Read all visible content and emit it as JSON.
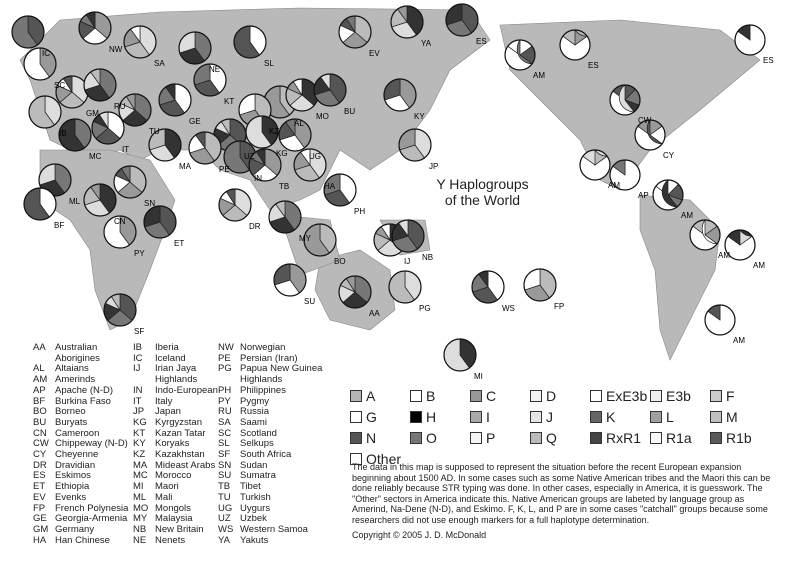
{
  "title": [
    "Y Haplogroups",
    "of the World"
  ],
  "pie_labels": [
    "IC",
    "NW",
    "SA",
    "NE",
    "SL",
    "EV",
    "YA",
    "ES",
    "SC",
    "GM",
    "RU",
    "KT",
    "AL",
    "MO",
    "BU",
    "KY",
    "IB",
    "TU",
    "GE",
    "KZ",
    "KG",
    "UZ",
    "UG",
    "JP",
    "MC",
    "IT",
    "PE",
    "MA",
    "IN",
    "TB",
    "HA",
    "ML",
    "BF",
    "SN",
    "CN",
    "ET",
    "PY",
    "DR",
    "MY",
    "PH",
    "BO",
    "IJ",
    "NB",
    "SU",
    "PG",
    "AA",
    "WS",
    "FP",
    "MI",
    "SF",
    "AM",
    "ES",
    "ES",
    "CW",
    "CY",
    "AM",
    "AP",
    "AM",
    "AM",
    "AM",
    "AM"
  ],
  "abbreviations": [
    [
      [
        "AA",
        "Australian"
      ],
      [
        "",
        "Aborigines"
      ],
      [
        "AL",
        "Altaians"
      ],
      [
        "AM",
        "Amerinds"
      ],
      [
        "AP",
        "Apache (N-D)"
      ],
      [
        "BF",
        "Burkina Faso"
      ],
      [
        "BO",
        "Borneo"
      ],
      [
        "BU",
        "Buryats"
      ],
      [
        "CN",
        "Cameroon"
      ],
      [
        "CW",
        "Chippeway (N-D)"
      ],
      [
        "CY",
        "Cheyenne"
      ],
      [
        "DR",
        "Dravidian"
      ],
      [
        "ES",
        "Eskimos"
      ],
      [
        "ET",
        "Ethiopia"
      ],
      [
        "EV",
        "Evenks"
      ],
      [
        "FP",
        "French Polynesia"
      ],
      [
        "GE",
        "Georgia-Armenia"
      ],
      [
        "GM",
        "Germany"
      ],
      [
        "HA",
        "Han Chinese"
      ]
    ],
    [
      [
        "IB",
        "Iberia"
      ],
      [
        "IC",
        "Iceland"
      ],
      [
        "IJ",
        "Irian Jaya"
      ],
      [
        "",
        "Highlands"
      ],
      [
        "IN",
        "Indo-European"
      ],
      [
        "IT",
        "Italy"
      ],
      [
        "JP",
        "Japan"
      ],
      [
        "KG",
        "Kyrgyzstan"
      ],
      [
        "KT",
        "Kazan Tatar"
      ],
      [
        "KY",
        "Koryaks"
      ],
      [
        "KZ",
        "Kazakhstan"
      ],
      [
        "MA",
        "Mideast Arabs"
      ],
      [
        "MC",
        "Morocco"
      ],
      [
        "MI",
        "Maori"
      ],
      [
        "ML",
        "Mali"
      ],
      [
        "MO",
        "Mongols"
      ],
      [
        "MY",
        "Malaysia"
      ],
      [
        "NB",
        "New Britain"
      ],
      [
        "NE",
        "Nenets"
      ]
    ],
    [
      [
        "NW",
        "Norwegian"
      ],
      [
        "PE",
        "Persian (Iran)"
      ],
      [
        "PG",
        "Papua New Guinea"
      ],
      [
        "",
        "Highlands"
      ],
      [
        "PH",
        "Philippines"
      ],
      [
        "PY",
        "Pygmy"
      ],
      [
        "RU",
        "Russia"
      ],
      [
        "SA",
        "Saami"
      ],
      [
        "SC",
        "Scotland"
      ],
      [
        "SL",
        "Selkups"
      ],
      [
        "SF",
        "South Africa"
      ],
      [
        "SN",
        "Sudan"
      ],
      [
        "SU",
        "Sumatra"
      ],
      [
        "TB",
        "Tibet"
      ],
      [
        "TU",
        "Turkish"
      ],
      [
        "UG",
        "Uygurs"
      ],
      [
        "UZ",
        "Uzbek"
      ],
      [
        "WS",
        "Western Samoa"
      ],
      [
        "YA",
        "Yakuts"
      ]
    ]
  ],
  "haplogroups": [
    {
      "name": "A",
      "color": "#b5b5b5"
    },
    {
      "name": "B",
      "color": "#ffffff"
    },
    {
      "name": "C",
      "color": "#999999"
    },
    {
      "name": "D",
      "color": "#f2f2f2"
    },
    {
      "name": "ExE3b",
      "color": "#ffffff"
    },
    {
      "name": "E3b",
      "color": "#eeeeee"
    },
    {
      "name": "F",
      "color": "#cccccc"
    },
    {
      "name": "G",
      "color": "#ffffff"
    },
    {
      "name": "H",
      "color": "#000000"
    },
    {
      "name": "I",
      "color": "#aaaaaa"
    },
    {
      "name": "J",
      "color": "#e5e5e5"
    },
    {
      "name": "K",
      "color": "#666666"
    },
    {
      "name": "L",
      "color": "#a0a0a0"
    },
    {
      "name": "M",
      "color": "#c0c0c0"
    },
    {
      "name": "N",
      "color": "#555555"
    },
    {
      "name": "O",
      "color": "#777777"
    },
    {
      "name": "P",
      "color": "#f5f5f5"
    },
    {
      "name": "Q",
      "color": "#bbbbbb"
    },
    {
      "name": "RxR1",
      "color": "#444444"
    },
    {
      "name": "R1a",
      "color": "#fafafa"
    },
    {
      "name": "R1b",
      "color": "#5a5a5a"
    },
    {
      "name": "Other",
      "color": "#ffffff"
    }
  ],
  "note": "The data in this map is supposed to represent the situation before the recent European expansion beginning about 1500 AD. In some cases such as some Native American tribes and the Maori this can be done reliably because STR typing was done. In other cases, especially in America, it is guesswork. The \"Other\" sectors in America indicate this. Native American groups are labeted by language group as Amerind, Na-Dene (N-D), and Eskimo.  F, K, L, and P are in some cases \"catchall\" groups because some researchers did not use enough markers for a full haplotype determination.",
  "copyright": "Copyright © 2005 J. D. McDonald"
}
